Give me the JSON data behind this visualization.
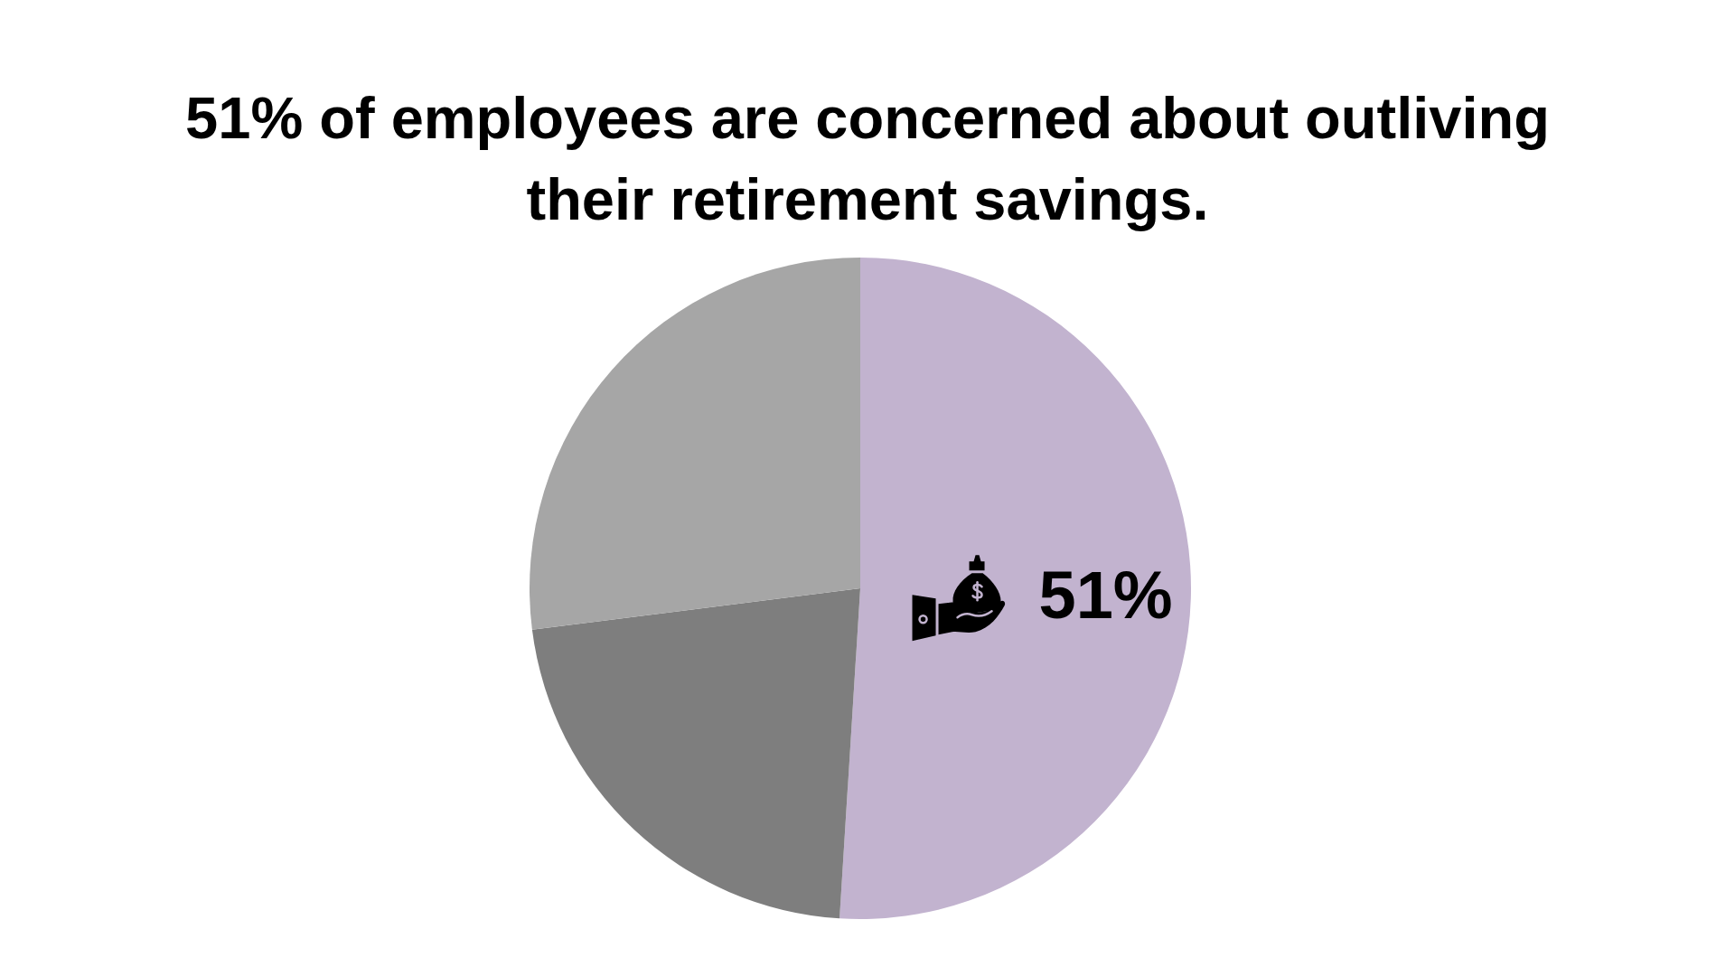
{
  "chart_data": {
    "type": "pie",
    "title": "51% of employees are concerned about outliving their retirement savings.",
    "categories": [
      null,
      null,
      null
    ],
    "values": [
      51,
      22,
      27
    ],
    "colors": [
      "#c2b3cf",
      "#7e7e7e",
      "#a6a6a6"
    ],
    "value_labels": [
      "51%",
      null,
      null
    ]
  }
}
